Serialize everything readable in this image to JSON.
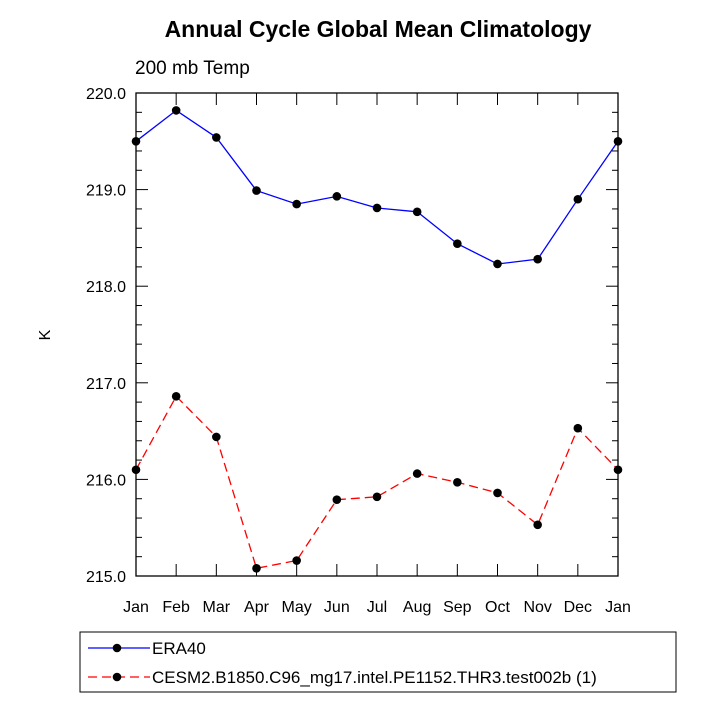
{
  "chart_data": {
    "type": "line",
    "title": "Annual Cycle Global Mean Climatology",
    "subtitle": "200 mb Temp",
    "ylabel": "K",
    "xlabel": "",
    "categories": [
      "Jan",
      "Feb",
      "Mar",
      "Apr",
      "May",
      "Jun",
      "Jul",
      "Aug",
      "Sep",
      "Oct",
      "Nov",
      "Dec",
      "Jan"
    ],
    "ylim": [
      215.0,
      220.0
    ],
    "yticks": [
      "215.0",
      "216.0",
      "217.0",
      "218.0",
      "219.0",
      "220.0"
    ],
    "grid": false,
    "legend_position": "bottom",
    "series": [
      {
        "name": "ERA40",
        "color": "#0000ff",
        "line_style": "solid",
        "marker": "filled-circle",
        "values": [
          219.5,
          219.82,
          219.54,
          218.99,
          218.85,
          218.93,
          218.81,
          218.77,
          218.44,
          218.23,
          218.28,
          218.9,
          219.5
        ]
      },
      {
        "name": "CESM2.B1850.C96_mg17.intel.PE1152.THR3.test002b (1)",
        "color": "#ff0000",
        "line_style": "dashed",
        "marker": "filled-circle",
        "values": [
          216.1,
          216.86,
          216.44,
          215.08,
          215.16,
          215.79,
          215.82,
          216.06,
          215.97,
          215.86,
          215.53,
          216.53,
          216.1
        ]
      }
    ]
  }
}
